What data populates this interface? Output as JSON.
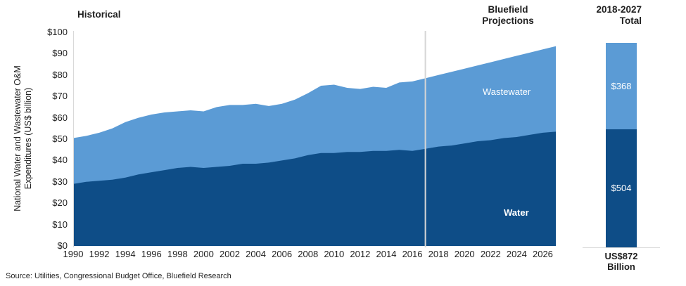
{
  "header": {
    "historical": "Historical",
    "projections_line1": "Bluefield",
    "projections_line2": "Projections",
    "total_line1": "2018-2027",
    "total_line2": "Total"
  },
  "y_axis": {
    "title_line1": "National Water and Wastewater O&M",
    "title_line2": "Expenditures (US$ billion)",
    "ticks": [
      {
        "v": 0,
        "label": "$0"
      },
      {
        "v": 10,
        "label": "$10"
      },
      {
        "v": 20,
        "label": "$20"
      },
      {
        "v": 30,
        "label": "$30"
      },
      {
        "v": 40,
        "label": "$40"
      },
      {
        "v": 50,
        "label": "$50"
      },
      {
        "v": 60,
        "label": "$60"
      },
      {
        "v": 70,
        "label": "$70"
      },
      {
        "v": 80,
        "label": "$80"
      },
      {
        "v": 90,
        "label": "$90"
      },
      {
        "v": 100,
        "label": "$100"
      }
    ]
  },
  "x_axis": {
    "ticks": [
      "1990",
      "1992",
      "1994",
      "1996",
      "1998",
      "2000",
      "2002",
      "2004",
      "2006",
      "2008",
      "2010",
      "2012",
      "2014",
      "2016",
      "2018",
      "2020",
      "2022",
      "2024",
      "2026"
    ]
  },
  "chart_data": {
    "type": "area",
    "stacked": true,
    "title": "",
    "xlabel": "",
    "ylabel": "National Water and Wastewater O&M Expenditures (US$ billion)",
    "ylim": [
      0,
      100
    ],
    "grid": false,
    "divider_year": 2017,
    "x": [
      1990,
      1991,
      1992,
      1993,
      1994,
      1995,
      1996,
      1997,
      1998,
      1999,
      2000,
      2001,
      2002,
      2003,
      2004,
      2005,
      2006,
      2007,
      2008,
      2009,
      2010,
      2011,
      2012,
      2013,
      2014,
      2015,
      2016,
      2017,
      2018,
      2019,
      2020,
      2021,
      2022,
      2023,
      2024,
      2025,
      2026,
      2027
    ],
    "series": [
      {
        "name": "Water",
        "color": "#0E4D87",
        "values": [
          29,
          30,
          30.5,
          31,
          32,
          33.5,
          34.5,
          35.5,
          36.5,
          37,
          36.5,
          37,
          37.5,
          38.5,
          38.5,
          39,
          40,
          41,
          42.5,
          43.5,
          43.5,
          44,
          44,
          44.5,
          44.5,
          45,
          44.5,
          45.5,
          46.5,
          47,
          48,
          49,
          49.5,
          50.5,
          51,
          52,
          53,
          53.5
        ]
      },
      {
        "name": "Wastewater",
        "color": "#5B9BD5",
        "values": [
          21.5,
          21.5,
          22.5,
          24,
          26,
          26.5,
          27,
          27,
          26.5,
          26.5,
          26.5,
          28,
          28.5,
          27.5,
          28,
          26.5,
          26.5,
          27.5,
          29,
          31.5,
          32,
          30,
          29.5,
          30,
          29.5,
          31.5,
          32.5,
          33,
          33.5,
          34.5,
          35,
          35.5,
          36.5,
          37,
          38,
          38.5,
          39,
          40
        ]
      }
    ],
    "area_labels": {
      "wastewater": "Wastewater",
      "water": "Water"
    }
  },
  "total_bar": {
    "segments": [
      {
        "name": "Water",
        "label": "$504",
        "value": 504,
        "color": "#0E4D87"
      },
      {
        "name": "Wastewater",
        "label": "$368",
        "value": 368,
        "color": "#5B9BD5"
      }
    ],
    "total_line1": "US$872",
    "total_line2": "Billion"
  },
  "source": "Source: Utilities, Congressional Budget Office, Bluefield Research",
  "colors": {
    "water": "#0E4D87",
    "wastewater": "#5B9BD5",
    "divider": "#D6D6D6",
    "axis": "#D9D9D9"
  }
}
